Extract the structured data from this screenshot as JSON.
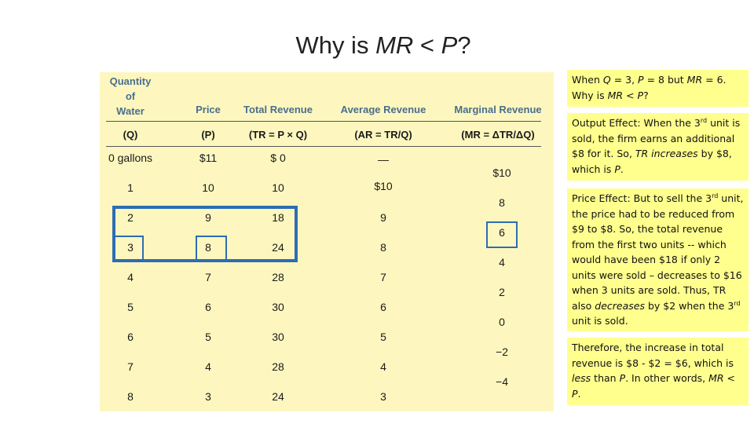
{
  "slide": {
    "title_pre": "Why is ",
    "title_mr": "MR",
    "title_mid": " < ",
    "title_p": "P",
    "title_post": "?"
  },
  "table": {
    "headers": [
      "Quantity\nof\nWater",
      "Price",
      "Total Revenue",
      "Average Revenue",
      "Marginal Revenue"
    ],
    "symbols": [
      "(Q)",
      "(P)",
      "(TR = P × Q)",
      "(AR = TR/Q)",
      "(MR = ΔTR/ΔQ)"
    ],
    "rows": [
      {
        "q": "0 gallons",
        "p": "$11",
        "tr": "$  0",
        "ar": "—"
      },
      {
        "q": "1",
        "p": "10",
        "tr": "10",
        "ar": "$10"
      },
      {
        "q": "2",
        "p": "9",
        "tr": "18",
        "ar": "9"
      },
      {
        "q": "3",
        "p": "8",
        "tr": "24",
        "ar": "8"
      },
      {
        "q": "4",
        "p": "7",
        "tr": "28",
        "ar": "7"
      },
      {
        "q": "5",
        "p": "6",
        "tr": "30",
        "ar": "6"
      },
      {
        "q": "6",
        "p": "5",
        "tr": "30",
        "ar": "5"
      },
      {
        "q": "7",
        "p": "4",
        "tr": "28",
        "ar": "4"
      },
      {
        "q": "8",
        "p": "3",
        "tr": "24",
        "ar": "3"
      }
    ],
    "marginal": [
      "$10",
      "8",
      "6",
      "4",
      "2",
      "0",
      "−2",
      "−4"
    ]
  },
  "notes": {
    "box1_a": "When ",
    "box1_q": "Q",
    "box1_b": " = 3, ",
    "box1_p": "P",
    "box1_c": " = 8 but ",
    "box1_mr": "MR",
    "box1_d": " = 6. Why is ",
    "box1_mr2": "MR",
    "box1_e": " < ",
    "box1_p2": "P",
    "box1_f": "?",
    "box2_a": "Output Effect: When the 3",
    "box2_sup": "rd",
    "box2_b": " unit is sold, the firm earns an additional  $8 for it. So, ",
    "box2_tr": "TR increases",
    "box2_c": " by $8, which is ",
    "box2_p": "P",
    "box2_d": ".",
    "box3_a": "Price Effect: But to sell the 3",
    "box3_sup": "rd",
    "box3_b": " unit, the price had to be reduced from $9 to $8. So, the total revenue from the first two units -- which would have been $18 if only 2 units were sold – decreases to $16 when 3 units are sold. Thus, TR also ",
    "box3_dec": "decreases",
    "box3_c": " by $2 when the 3",
    "box3_sup2": "rd",
    "box3_d": " unit is sold.",
    "box4_a": "Therefore, the increase in total revenue is $8 - $2 = $6, which is ",
    "box4_less": "less",
    "box4_b": " than ",
    "box4_p": "P",
    "box4_c": ". In other words, ",
    "box4_mr": "MR < P",
    "box4_d": "."
  },
  "colors": {
    "panel_bg": "#fdf7bf",
    "header_text": "#4a6e8e",
    "highlight_box": "#2d6cb5",
    "note_bg": "#ffff8e"
  }
}
